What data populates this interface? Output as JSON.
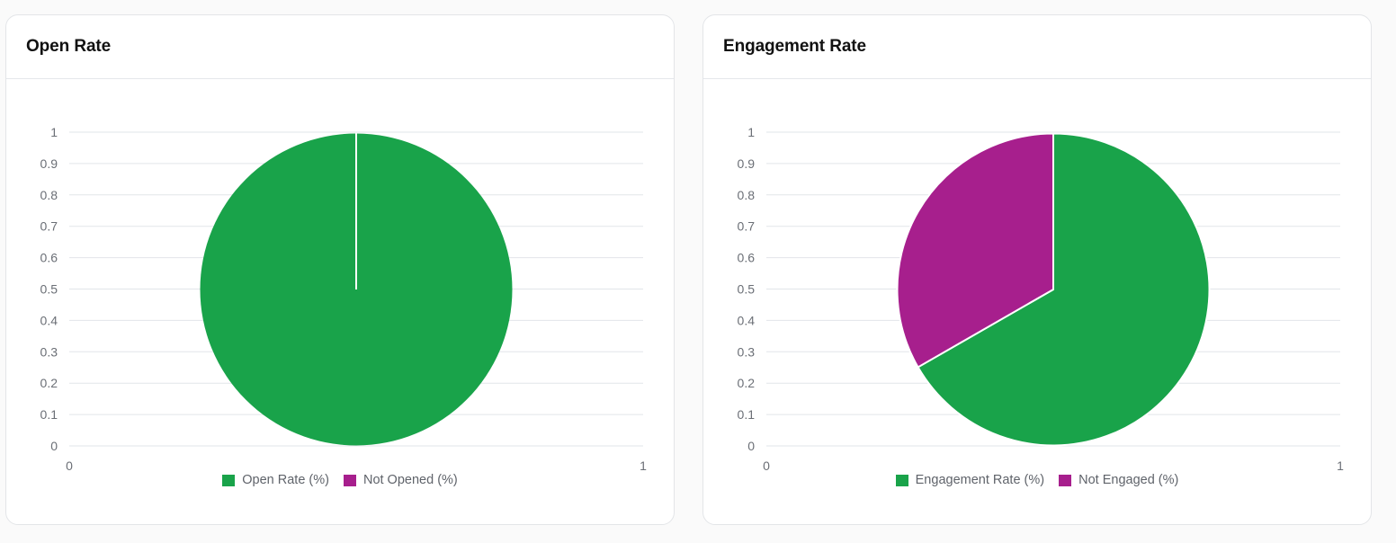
{
  "chart_data": [
    {
      "type": "pie",
      "title": "Open Rate",
      "labels": [
        "Open Rate (%)",
        "Not Opened (%)"
      ],
      "values": [
        100,
        0
      ],
      "colors": [
        "#19a34a",
        "#a71f8d"
      ],
      "y_ticks": [
        "1",
        "0.9",
        "0.8",
        "0.7",
        "0.6",
        "0.5",
        "0.4",
        "0.3",
        "0.2",
        "0.1",
        "0"
      ],
      "x_ticks": [
        "0",
        "1"
      ],
      "grid": true,
      "legend_position": "bottom"
    },
    {
      "type": "pie",
      "title": "Engagement Rate",
      "labels": [
        "Engagement Rate (%)",
        "Not Engaged (%)"
      ],
      "values": [
        66.7,
        33.3
      ],
      "colors": [
        "#19a34a",
        "#a71f8d"
      ],
      "y_ticks": [
        "1",
        "0.9",
        "0.8",
        "0.7",
        "0.6",
        "0.5",
        "0.4",
        "0.3",
        "0.2",
        "0.1",
        "0"
      ],
      "x_ticks": [
        "0",
        "1"
      ],
      "grid": true,
      "legend_position": "bottom"
    }
  ]
}
